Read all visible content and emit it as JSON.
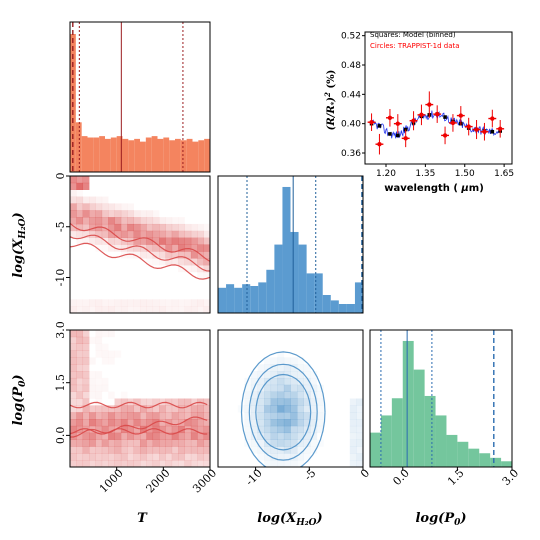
{
  "chart_data": [
    {
      "id": "hist-T",
      "type": "bar",
      "bin_edges": [
        0,
        125,
        250,
        375,
        500,
        625,
        750,
        875,
        1000,
        1125,
        1250,
        1375,
        1500,
        1625,
        1750,
        1875,
        2000,
        2125,
        2250,
        2375,
        2500,
        2625,
        2750,
        2875,
        3000
      ],
      "values": [
        100,
        36,
        26,
        25,
        25,
        26,
        24,
        25,
        26,
        24,
        23,
        24,
        22,
        25,
        26,
        24,
        25,
        23,
        24,
        23,
        24,
        22,
        23,
        24
      ],
      "vlines": [
        {
          "x": 60,
          "style": "dashed"
        },
        {
          "x": 200,
          "style": "dotted"
        },
        {
          "x": 1100,
          "style": "solid"
        },
        {
          "x": 2420,
          "style": "dotted"
        }
      ],
      "xlim": [
        0,
        3000
      ],
      "color": "#f4845f",
      "line_color": "#9b1d20"
    },
    {
      "id": "hist-logXH2O",
      "type": "bar",
      "bin_edges": [
        -13.5,
        -12.75,
        -12,
        -11.25,
        -10.5,
        -9.75,
        -9,
        -8.25,
        -7.5,
        -6.75,
        -6,
        -5.25,
        -4.5,
        -3.75,
        -3,
        -2.25,
        -1.5,
        -0.75,
        0
      ],
      "values": [
        14,
        16,
        14,
        16,
        15,
        17,
        24,
        38,
        70,
        45,
        38,
        22,
        22,
        10,
        7,
        5,
        5,
        17
      ],
      "vlines": [
        {
          "x": -10.8,
          "style": "dotted"
        },
        {
          "x": -6.5,
          "style": "solid"
        },
        {
          "x": -4.4,
          "style": "dotted"
        },
        {
          "x": -0.1,
          "style": "dashed"
        }
      ],
      "xlim": [
        -13.5,
        0
      ],
      "color": "#5b9bd0",
      "line_color": "#1f5f9a"
    },
    {
      "id": "hist-logP0",
      "type": "bar",
      "bin_edges": [
        -0.9,
        -0.6,
        -0.3,
        0.0,
        0.3,
        0.6,
        0.9,
        1.2,
        1.5,
        1.8,
        2.1,
        2.4,
        2.7,
        3.0
      ],
      "values": [
        30,
        45,
        60,
        110,
        85,
        62,
        45,
        28,
        22,
        16,
        12,
        8,
        5
      ],
      "vlines": [
        {
          "x": -0.6,
          "style": "dotted"
        },
        {
          "x": 0.12,
          "style": "solid"
        },
        {
          "x": 0.8,
          "style": "dotted"
        },
        {
          "x": 2.5,
          "style": "dashed"
        }
      ],
      "xlim": [
        -0.9,
        3.0
      ],
      "color": "#74c69d",
      "line_color": "#2b6cb0"
    },
    {
      "id": "contour-T-logXH2O",
      "type": "heatmap",
      "xlim": [
        0,
        3000
      ],
      "ylim": [
        -13.5,
        0
      ],
      "yticks": [
        0,
        -5,
        -10
      ],
      "ylabel": "log(X_H2O)",
      "color": "#d94848",
      "mode": "decreasing"
    },
    {
      "id": "contour-T-logP0",
      "type": "heatmap",
      "xlim": [
        0,
        3000
      ],
      "ylim": [
        -0.9,
        3.0
      ],
      "xticks": [
        1000,
        2000,
        3000
      ],
      "yticks": [
        3.0,
        1.5,
        0.0
      ],
      "xlabel": "T",
      "ylabel": "log(P0)",
      "color": "#d94848",
      "mode": "band"
    },
    {
      "id": "contour-logXH2O-logP0",
      "type": "heatmap",
      "xlim": [
        -13.5,
        0
      ],
      "ylim": [
        -0.9,
        3.0
      ],
      "xticks": [
        -10,
        -5,
        0
      ],
      "xlabel": "log(X_H2O)",
      "color": "#4a8fc7",
      "mode": "blob"
    },
    {
      "id": "spectrum",
      "type": "scatter",
      "xlabel": "wavelength ( μm)",
      "ylabel": "(R/R*)^2 (%)",
      "xlim": [
        1.12,
        1.68
      ],
      "ylim": [
        0.345,
        0.525
      ],
      "xticks": [
        1.2,
        1.35,
        1.5,
        1.65
      ],
      "yticks": [
        0.36,
        0.4,
        0.44,
        0.48,
        0.52
      ],
      "legend": {
        "position": "top-right",
        "entries": [
          {
            "label": "Squares: Model (binned)",
            "color": "#000000"
          },
          {
            "label": "Circles: TRAPPIST-1d data",
            "color": "#ff0000"
          }
        ]
      },
      "data": {
        "x": [
          1.145,
          1.175,
          1.215,
          1.245,
          1.275,
          1.305,
          1.335,
          1.365,
          1.395,
          1.425,
          1.455,
          1.485,
          1.515,
          1.545,
          1.575,
          1.605,
          1.635
        ],
        "y": [
          0.402,
          0.372,
          0.408,
          0.4,
          0.38,
          0.404,
          0.412,
          0.426,
          0.413,
          0.384,
          0.401,
          0.411,
          0.396,
          0.392,
          0.389,
          0.407,
          0.393
        ],
        "yerr": [
          0.012,
          0.014,
          0.012,
          0.013,
          0.012,
          0.013,
          0.014,
          0.018,
          0.012,
          0.012,
          0.012,
          0.013,
          0.012,
          0.013,
          0.012,
          0.012,
          0.012
        ],
        "xerr": 0.015
      },
      "model": {
        "x": [
          1.145,
          1.175,
          1.215,
          1.245,
          1.275,
          1.305,
          1.335,
          1.365,
          1.395,
          1.425,
          1.455,
          1.485,
          1.515,
          1.545,
          1.575,
          1.605,
          1.635
        ],
        "y": [
          0.4,
          0.397,
          0.386,
          0.384,
          0.392,
          0.401,
          0.41,
          0.412,
          0.413,
          0.409,
          0.403,
          0.4,
          0.394,
          0.392,
          0.39,
          0.389,
          0.39
        ]
      }
    }
  ]
}
